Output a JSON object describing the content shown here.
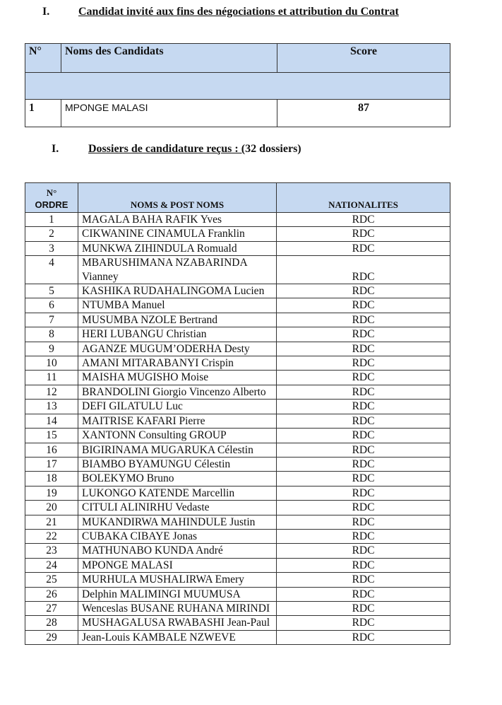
{
  "section1": {
    "numeral": "I.",
    "title": "Candidat invité aux fins des négociations et attribution du Contrat"
  },
  "table1": {
    "headers": [
      "N°",
      "Noms des Candidats",
      "Score"
    ],
    "rows": [
      {
        "no": "1",
        "name": "MPONGE MALASI",
        "score": "87"
      }
    ]
  },
  "section2": {
    "numeral": "I.",
    "title": "Dossiers de candidature reçus : (",
    "title_rest": "32 dossiers)"
  },
  "table2": {
    "headers": {
      "no_line1": "N°",
      "no_line2": "ORDRE",
      "names": "NOMS & POST NOMS",
      "nat": "NATIONALITES"
    },
    "rows": [
      [
        "1",
        "MAGALA BAHA RAFIK Yves",
        "RDC"
      ],
      [
        "2",
        "CIKWANINE CINAMULA Franklin",
        "RDC"
      ],
      [
        "3",
        "MUNKWA ZIHINDULA Romuald",
        "RDC"
      ],
      [
        "4",
        "MBARUSHIMANA NZABARINDA Vianney",
        "RDC"
      ],
      [
        "5",
        "KASHIKA RUDAHALINGOMA Lucien",
        "RDC"
      ],
      [
        "6",
        "NTUMBA Manuel",
        "RDC"
      ],
      [
        "7",
        "MUSUMBA NZOLE Bertrand",
        "RDC"
      ],
      [
        "8",
        "HERI LUBANGU Christian",
        "RDC"
      ],
      [
        "9",
        "AGANZE MUGUM’ODERHA Desty",
        "RDC"
      ],
      [
        "10",
        "AMANI MITARABANYI Crispin",
        "RDC"
      ],
      [
        "11",
        "MAISHA MUGISHO Moise",
        "RDC"
      ],
      [
        "12",
        "BRANDOLINI Giorgio Vincenzo Alberto",
        "RDC"
      ],
      [
        "13",
        "DEFI GILATULU Luc",
        "RDC"
      ],
      [
        "14",
        "MAITRISE KAFARI Pierre",
        "RDC"
      ],
      [
        "15",
        "XANTONN Consulting GROUP",
        "RDC"
      ],
      [
        "16",
        "BIGIRINAMA MUGARUKA Célestin",
        "RDC"
      ],
      [
        "17",
        "BIAMBO BYAMUNGU Célestin",
        "RDC"
      ],
      [
        "18",
        "BOLEKYMO Bruno",
        "RDC"
      ],
      [
        "19",
        "LUKONGO KATENDE Marcellin",
        "RDC"
      ],
      [
        "20",
        "CITULI ALINIRHU Vedaste",
        "RDC"
      ],
      [
        "21",
        "MUKANDIRWA MAHINDULE Justin",
        "RDC"
      ],
      [
        "22",
        "CUBAKA CIBAYE Jonas",
        "RDC"
      ],
      [
        "23",
        "MATHUNABO KUNDA André",
        "RDC"
      ],
      [
        "24",
        "MPONGE MALASI",
        "RDC"
      ],
      [
        "25",
        "MURHULA MUSHALIRWA Emery",
        "RDC"
      ],
      [
        "26",
        "Delphin MALIMINGI MUUMUSA",
        "RDC"
      ],
      [
        "27",
        "Wenceslas BUSANE RUHANA MIRINDI",
        "RDC"
      ],
      [
        "28",
        "MUSHAGALUSA RWABASHI Jean-Paul",
        "RDC"
      ],
      [
        "29",
        "Jean-Louis KAMBALE NZWEVE",
        "RDC"
      ]
    ]
  },
  "colors": {
    "header_fill": "#c6d9f1"
  }
}
